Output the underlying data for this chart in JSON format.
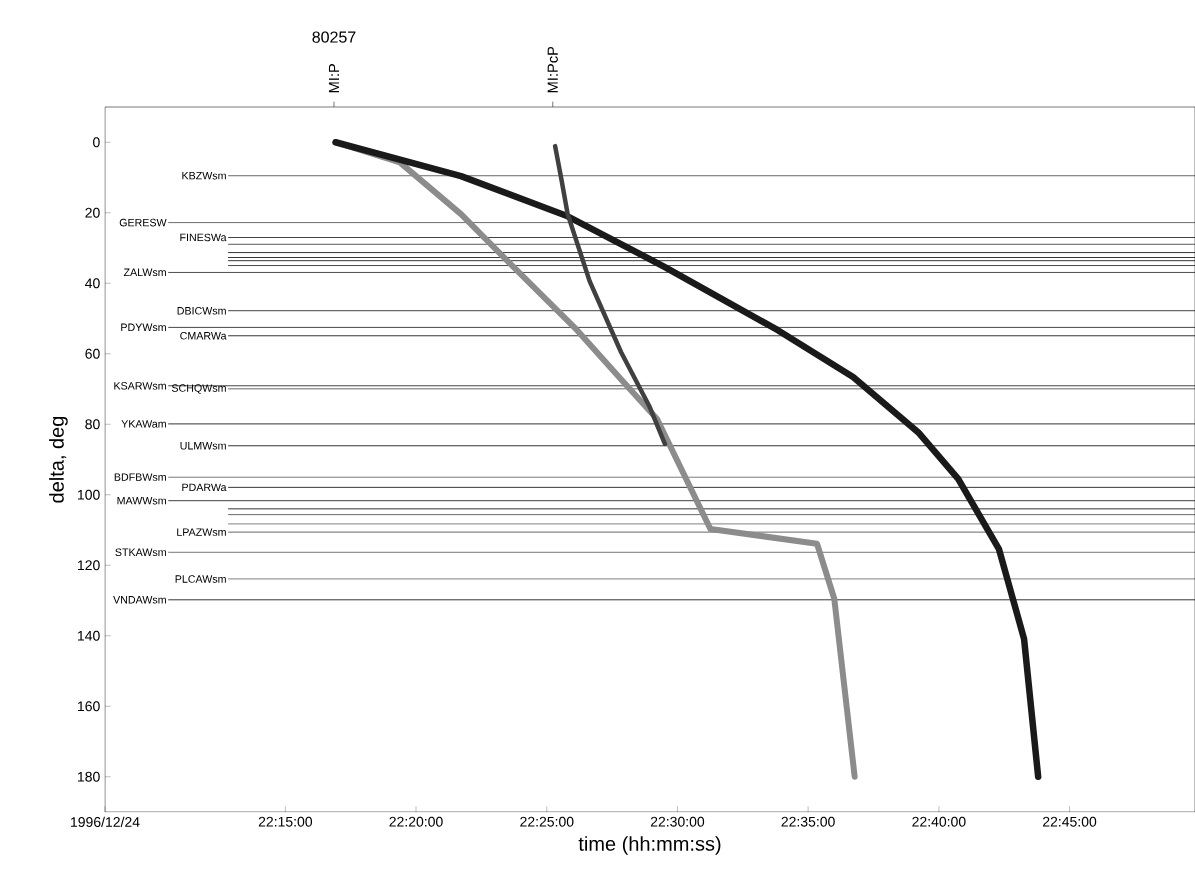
{
  "chart_data": {
    "type": "line",
    "title": "80257",
    "xlabel": "time (hh:mm:ss)",
    "ylabel": "delta, deg",
    "xlim": [
      22.135,
      22.83
    ],
    "ylim": [
      190,
      -10
    ],
    "xticks": [
      {
        "value": 22.135,
        "label": "1996/12/24"
      },
      {
        "value": 22.25,
        "label": "22:15:00"
      },
      {
        "value": 22.3333,
        "label": "22:20:00"
      },
      {
        "value": 22.4167,
        "label": "22:25:00"
      },
      {
        "value": 22.5,
        "label": "22:30:00"
      },
      {
        "value": 22.5833,
        "label": "22:35:00"
      },
      {
        "value": 22.6667,
        "label": "22:40:00"
      },
      {
        "value": 22.75,
        "label": "22:45:00"
      }
    ],
    "yticks": [
      0,
      20,
      40,
      60,
      80,
      100,
      120,
      140,
      160,
      180
    ],
    "grid": false,
    "marker": "none",
    "line_style": "solid",
    "series": [
      {
        "color": "#8c8c8c",
        "x": [
          22.282,
          22.323,
          22.362,
          22.393,
          22.436,
          22.464,
          22.487,
          22.521,
          22.589,
          22.6,
          22.613
        ],
        "values": [
          0,
          5.7,
          20.4,
          34.3,
          53.3,
          67.2,
          78.5,
          109.7,
          113.9,
          129.5,
          180
        ]
      },
      {
        "color": "#1a1a1a",
        "x": [
          22.282,
          22.362,
          22.43,
          22.492,
          22.564,
          22.612,
          22.654,
          22.679,
          22.705,
          22.721,
          22.73
        ],
        "values": [
          0,
          9.6,
          21.0,
          35.4,
          53.3,
          66.6,
          82.5,
          95.5,
          115.4,
          140.9,
          180
        ]
      },
      {
        "color": "#404040",
        "x": [
          22.422,
          22.426,
          22.43,
          22.444,
          22.464,
          22.482,
          22.492
        ],
        "values": [
          1.1,
          10.5,
          20.4,
          39.4,
          59.5,
          74.8,
          85.6
        ]
      }
    ],
    "ref_lines": [
      {
        "axis": "y",
        "value": 9.5,
        "label": "KBZWsm"
      },
      {
        "axis": "y",
        "value": 22.8,
        "label": "GERESW"
      },
      {
        "axis": "y",
        "value": 27.0,
        "label": "FINESWa"
      },
      {
        "axis": "y",
        "value": 28.9
      },
      {
        "axis": "y",
        "value": 31.3
      },
      {
        "axis": "y",
        "value": 32.7
      },
      {
        "axis": "y",
        "value": 33.6
      },
      {
        "axis": "y",
        "value": 35.0
      },
      {
        "axis": "y",
        "value": 36.9,
        "label": "ZALWsm"
      },
      {
        "axis": "y",
        "value": 47.8,
        "label": "DBICWsm"
      },
      {
        "axis": "y",
        "value": 52.5,
        "label": "PDYWsm"
      },
      {
        "axis": "y",
        "value": 54.9,
        "label": "CMARWa"
      },
      {
        "axis": "y",
        "value": 69.1,
        "label": "KSARWsm"
      },
      {
        "axis": "y",
        "value": 70.0,
        "label": "SCHQWsm"
      },
      {
        "axis": "y",
        "value": 79.9,
        "label": "YKAWam"
      },
      {
        "axis": "y",
        "value": 86.1,
        "label": "ULMWsm"
      },
      {
        "axis": "y",
        "value": 95.0,
        "label": "BDFBWsm"
      },
      {
        "axis": "y",
        "value": 97.9,
        "label": "PDARWa"
      },
      {
        "axis": "y",
        "value": 101.7,
        "label": "MAWWsm"
      },
      {
        "axis": "y",
        "value": 104.0
      },
      {
        "axis": "y",
        "value": 105.7
      },
      {
        "axis": "y",
        "value": 108.3
      },
      {
        "axis": "y",
        "value": 110.6,
        "label": "LPAZWsm"
      },
      {
        "axis": "y",
        "value": 116.3,
        "label": "STKAWsm"
      },
      {
        "axis": "y",
        "value": 123.9,
        "label": "PLCAWsm"
      },
      {
        "axis": "y",
        "value": 129.8,
        "label": "VNDAWsm"
      }
    ],
    "annotations": [
      {
        "text": "MI:P",
        "x": 22.281
      },
      {
        "text": "MI:PcP",
        "x": 22.4205
      }
    ]
  }
}
